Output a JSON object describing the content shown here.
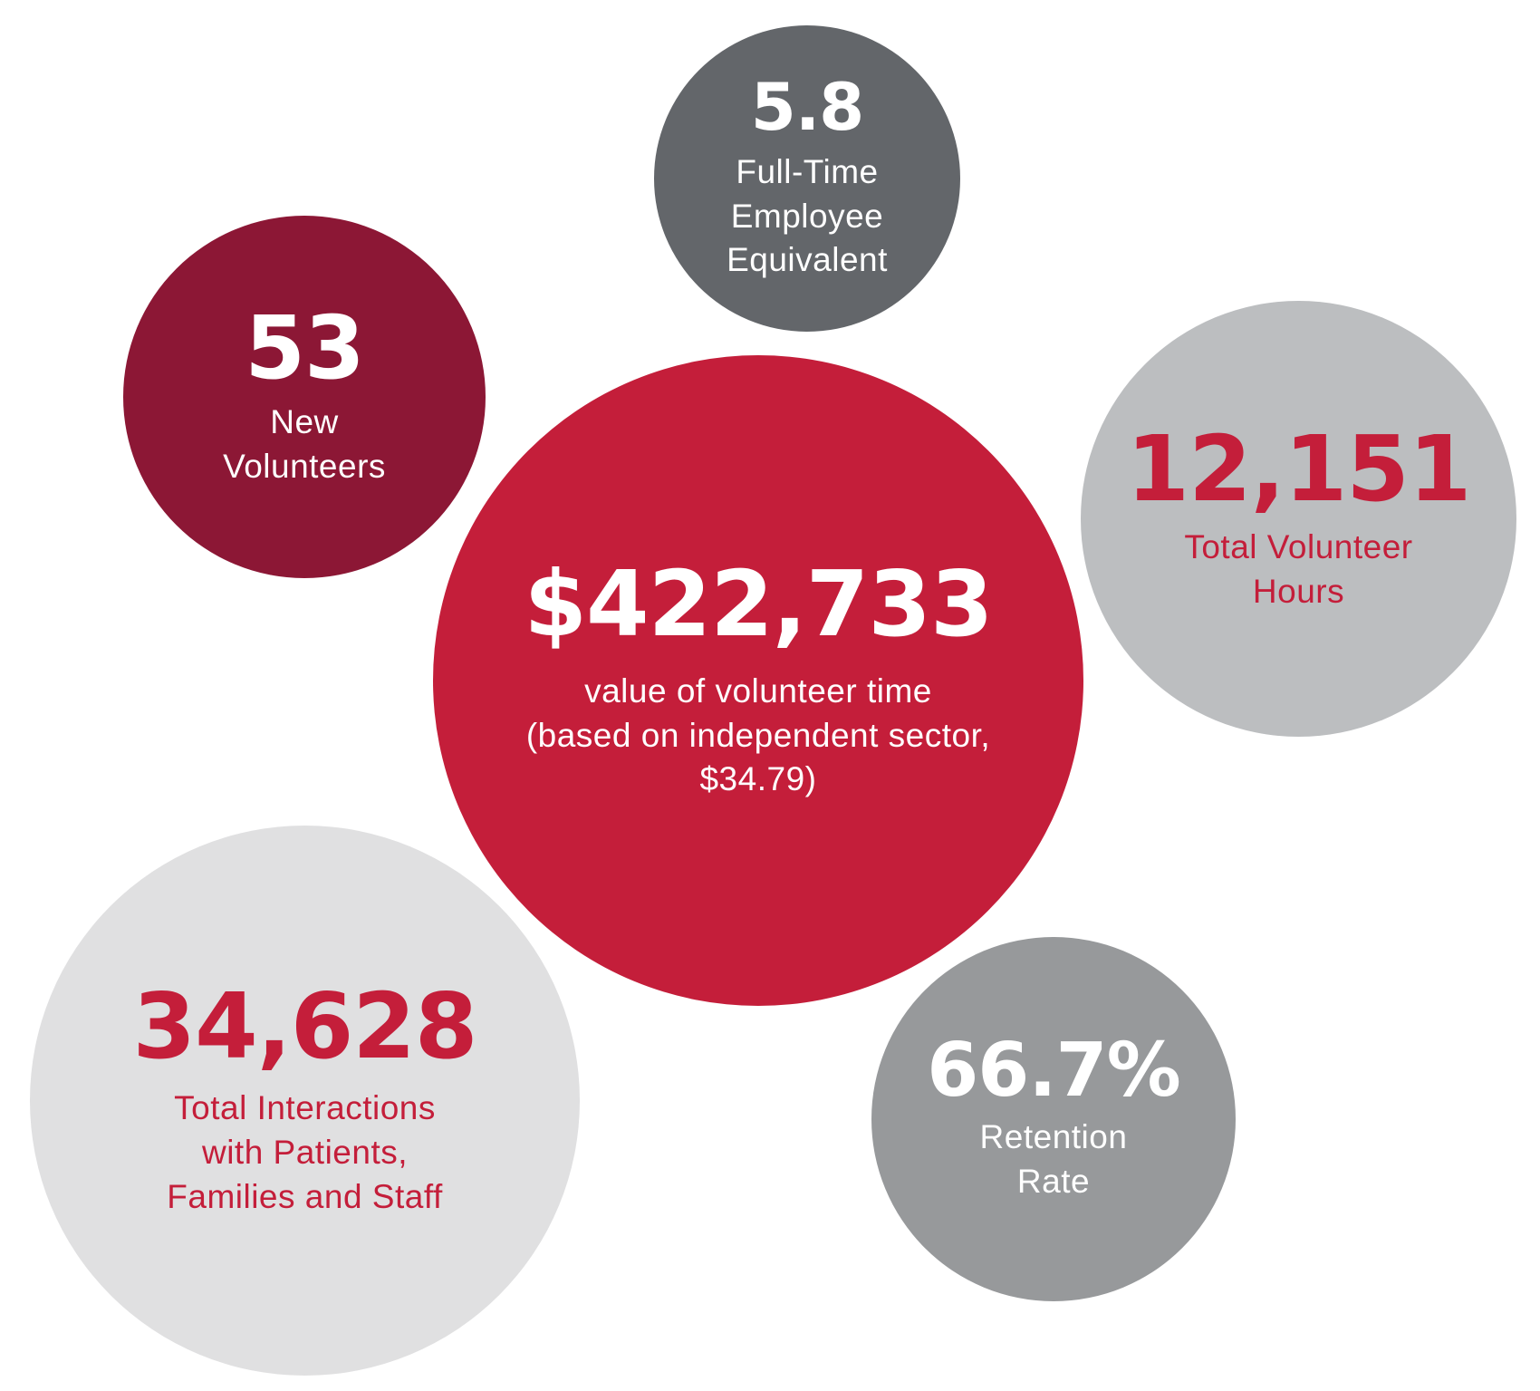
{
  "stats": [
    {
      "id": "fte",
      "value": "5.8",
      "label": "Full-Time\nEmployee\nEquivalent",
      "bg_color": "#63666a",
      "text_color": "#ffffff"
    },
    {
      "id": "new-volunteers",
      "value": "53",
      "label": "New\nVolunteers",
      "bg_color": "#8c1735",
      "text_color": "#ffffff"
    },
    {
      "id": "hours",
      "value": "12,151",
      "label": "Total Volunteer\nHours",
      "bg_color": "#bcbec0",
      "text_color": "#c41e3a"
    },
    {
      "id": "value-of-time",
      "value": "$422,733",
      "label": "value of volunteer time\n(based on independent sector,\n$34.79)",
      "bg_color": "#c41e3a",
      "text_color": "#ffffff"
    },
    {
      "id": "interactions",
      "value": "34,628",
      "label": "Total Interactions\nwith Patients,\nFamilies and Staff",
      "bg_color": "#e0e0e1",
      "text_color": "#c41e3a"
    },
    {
      "id": "retention",
      "value": "66.7%",
      "label": "Retention\nRate",
      "bg_color": "#97999b",
      "text_color": "#ffffff"
    }
  ]
}
